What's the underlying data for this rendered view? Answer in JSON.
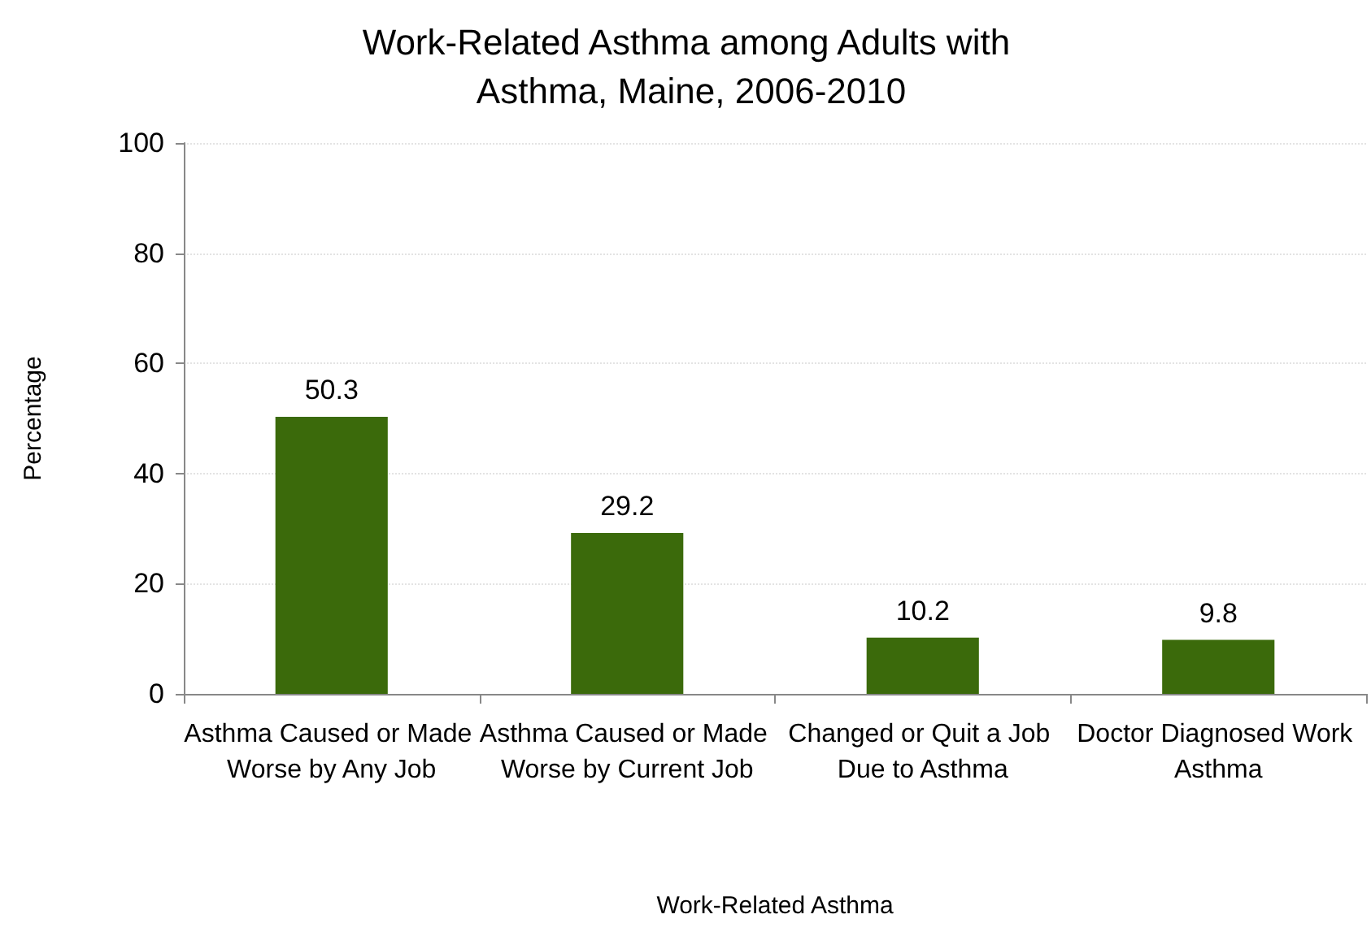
{
  "chart_data": {
    "type": "bar",
    "title": "Work-Related Asthma among Adults with Asthma, Maine, 2006-2010",
    "xlabel": "Work-Related Asthma",
    "ylabel": "Percentage",
    "categories": [
      "Asthma Caused or Made Worse by Any Job",
      "Asthma Caused or Made Worse by Current Job",
      "Changed or Quit a Job Due to Asthma",
      "Doctor Diagnosed Work Asthma"
    ],
    "values": [
      50.3,
      29.2,
      10.2,
      9.8
    ],
    "color": "#3b6a0b",
    "ylim": [
      0,
      100
    ],
    "yticks": [
      0,
      20,
      40,
      60,
      80,
      100
    ],
    "grid": "y",
    "data_labels": true
  }
}
